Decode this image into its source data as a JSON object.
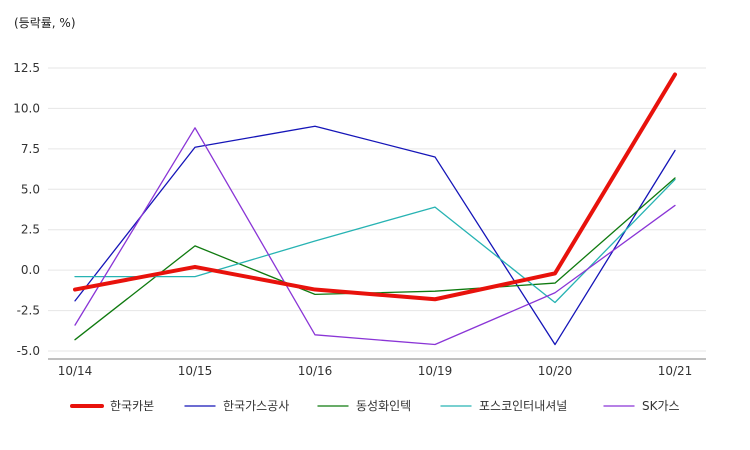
{
  "chart_data": {
    "type": "line",
    "unit_label": "(등락률, %)",
    "categories": [
      "10/14",
      "10/15",
      "10/16",
      "10/19",
      "10/20",
      "10/21"
    ],
    "ylim": [
      -5.0,
      12.5
    ],
    "yticks": [
      "12.5",
      "10.0",
      "7.5",
      "5.0",
      "2.5",
      "0.0",
      "-2.5",
      "-5.0"
    ],
    "grid": true,
    "legend_position": "bottom",
    "series": [
      {
        "name": "한국카본",
        "color": "#e8120c",
        "emphasis": true,
        "values": [
          -1.2,
          0.2,
          -1.2,
          -1.8,
          -0.2,
          12.1
        ]
      },
      {
        "name": "한국가스공사",
        "color": "#1515b8",
        "values": [
          -1.9,
          7.6,
          8.9,
          7.0,
          -4.6,
          7.4
        ]
      },
      {
        "name": "동성화인텍",
        "color": "#0f7a0f",
        "values": [
          -4.3,
          1.5,
          -1.5,
          -1.3,
          -0.8,
          5.7
        ]
      },
      {
        "name": "포스코인터내셔널",
        "color": "#27b3b3",
        "values": [
          -0.4,
          -0.4,
          1.8,
          3.9,
          -2.0,
          5.6
        ]
      },
      {
        "name": "SK가스",
        "color": "#8a35d6",
        "values": [
          -3.4,
          8.8,
          -4.0,
          -4.6,
          -1.4,
          4.0
        ]
      }
    ]
  }
}
